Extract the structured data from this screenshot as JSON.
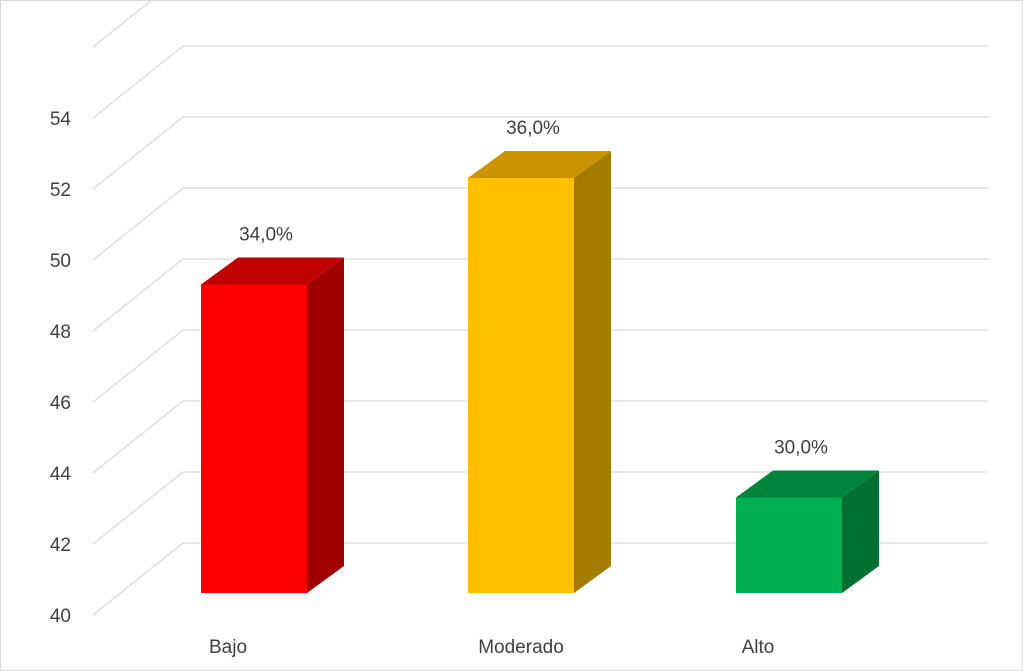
{
  "chart_data": {
    "type": "bar",
    "style": "3d-column",
    "categories": [
      "Bajo",
      "Moderado",
      "Alto"
    ],
    "values": [
      51.0,
      54.0,
      45.0
    ],
    "data_labels": [
      "34,0%",
      "36,0%",
      "30,0%"
    ],
    "colors": {
      "Bajo": {
        "front": "#ff0000",
        "side": "#a00000",
        "top": "#c00000"
      },
      "Moderado": {
        "front": "#ffc000",
        "side": "#a67c00",
        "top": "#c99400"
      },
      "Alto": {
        "front": "#00b050",
        "side": "#007030",
        "top": "#00843c"
      }
    },
    "yticks": [
      "40",
      "42",
      "44",
      "46",
      "48",
      "50",
      "52",
      "54"
    ],
    "ylim": [
      40,
      56
    ],
    "grid": true,
    "legend": "none",
    "title": "",
    "xlabel": "",
    "ylabel": ""
  }
}
